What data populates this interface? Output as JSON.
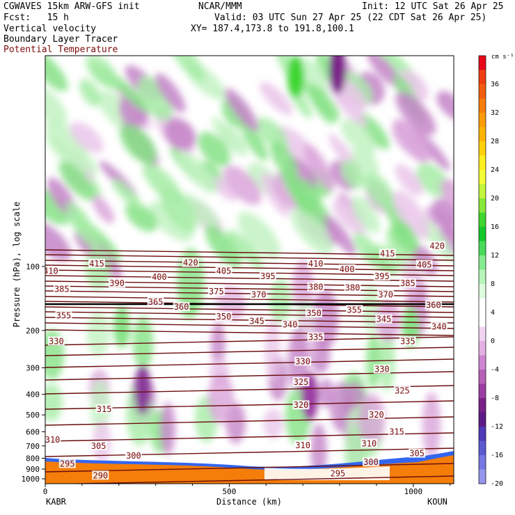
{
  "header": {
    "model": "CGWAVES 15km ARW-GFS init",
    "org": "NCAR/MMM",
    "init": "Init: 12 UTC Sat 26 Apr 25",
    "fcst": "Fcst:   15 h",
    "valid": "Valid: 03 UTC Sun 27 Apr 25 (22 CDT Sat 26 Apr 25)",
    "xy": "XY= 187.4,173.8 to 191.8,100.1",
    "fields": [
      "Vertical velocity",
      "Boundary Layer Tracer",
      "Potential Temperature"
    ]
  },
  "chart_data": {
    "type": "heatmap",
    "xlabel": "Distance (km)",
    "ylabel": "Pressure (hPa), log scale",
    "x_ticks": [
      0,
      500,
      1000
    ],
    "xlim": [
      0,
      1110
    ],
    "y_ticks": [
      100,
      200,
      300,
      400,
      500,
      600,
      700,
      800,
      900,
      1000
    ],
    "y_scale": "log",
    "endpoints": {
      "left": "KABR",
      "right": "KOUN"
    },
    "colorbar": {
      "unit": "cm s⁻¹",
      "labels": [
        36,
        32,
        28,
        24,
        20,
        16,
        12,
        8,
        4,
        0,
        -4,
        -8,
        -12,
        -16,
        -20
      ],
      "colors": [
        "#e8081a",
        "#f03e12",
        "#f25c0e",
        "#f57d0a",
        "#f99c07",
        "#fdb405",
        "#ffd10a",
        "#ffee20",
        "#f4fe38",
        "#c2f53d",
        "#86e838",
        "#3ed62f",
        "#14c829",
        "#48db59",
        "#85ea8f",
        "#b6f4ba",
        "#ddfbdd",
        "#ffffff",
        "#ffffff",
        "#f1d4f1",
        "#e2b0e2",
        "#cf84d0",
        "#b760b7",
        "#9b3ea3",
        "#7a2189",
        "#5c1a88",
        "#4f3ab7",
        "#5d5ad0",
        "#7876e2",
        "#9696ef"
      ]
    },
    "contour_labels": [
      {
        "value": "420",
        "x": 1065,
        "p": 80
      },
      {
        "value": "415",
        "x": 140,
        "p": 97
      },
      {
        "value": "415",
        "x": 930,
        "p": 87
      },
      {
        "value": "420",
        "x": 395,
        "p": 96
      },
      {
        "value": "410",
        "x": 15,
        "p": 105
      },
      {
        "value": "405",
        "x": 485,
        "p": 105
      },
      {
        "value": "410",
        "x": 735,
        "p": 97
      },
      {
        "value": "400",
        "x": 820,
        "p": 103
      },
      {
        "value": "405",
        "x": 1030,
        "p": 98
      },
      {
        "value": "400",
        "x": 310,
        "p": 112
      },
      {
        "value": "395",
        "x": 605,
        "p": 111
      },
      {
        "value": "395",
        "x": 915,
        "p": 111
      },
      {
        "value": "390",
        "x": 195,
        "p": 120
      },
      {
        "value": "385",
        "x": 45,
        "p": 128
      },
      {
        "value": "385",
        "x": 985,
        "p": 120
      },
      {
        "value": "380",
        "x": 735,
        "p": 125
      },
      {
        "value": "380",
        "x": 835,
        "p": 126
      },
      {
        "value": "375",
        "x": 465,
        "p": 131
      },
      {
        "value": "370",
        "x": 580,
        "p": 136
      },
      {
        "value": "370",
        "x": 925,
        "p": 136
      },
      {
        "value": "365",
        "x": 300,
        "p": 147
      },
      {
        "value": "360",
        "x": 370,
        "p": 155
      },
      {
        "value": "360",
        "x": 1055,
        "p": 152
      },
      {
        "value": "355",
        "x": 50,
        "p": 170
      },
      {
        "value": "355",
        "x": 840,
        "p": 160
      },
      {
        "value": "350",
        "x": 485,
        "p": 172
      },
      {
        "value": "350",
        "x": 730,
        "p": 166
      },
      {
        "value": "345",
        "x": 575,
        "p": 181
      },
      {
        "value": "345",
        "x": 920,
        "p": 177
      },
      {
        "value": "340",
        "x": 665,
        "p": 188
      },
      {
        "value": "340",
        "x": 1070,
        "p": 192
      },
      {
        "value": "335",
        "x": 735,
        "p": 215
      },
      {
        "value": "335",
        "x": 985,
        "p": 225
      },
      {
        "value": "330",
        "x": 30,
        "p": 225
      },
      {
        "value": "330",
        "x": 700,
        "p": 280
      },
      {
        "value": "330",
        "x": 915,
        "p": 305
      },
      {
        "value": "325",
        "x": 695,
        "p": 350
      },
      {
        "value": "325",
        "x": 970,
        "p": 385
      },
      {
        "value": "320",
        "x": 695,
        "p": 450
      },
      {
        "value": "320",
        "x": 900,
        "p": 500
      },
      {
        "value": "315",
        "x": 160,
        "p": 470
      },
      {
        "value": "315",
        "x": 955,
        "p": 600
      },
      {
        "value": "310",
        "x": 20,
        "p": 655
      },
      {
        "value": "310",
        "x": 700,
        "p": 695
      },
      {
        "value": "310",
        "x": 880,
        "p": 682
      },
      {
        "value": "305",
        "x": 145,
        "p": 700
      },
      {
        "value": "305",
        "x": 1010,
        "p": 760
      },
      {
        "value": "300",
        "x": 240,
        "p": 780
      },
      {
        "value": "300",
        "x": 885,
        "p": 835
      },
      {
        "value": "295",
        "x": 60,
        "p": 850
      },
      {
        "value": "295",
        "x": 795,
        "p": 945
      },
      {
        "value": "290",
        "x": 150,
        "p": 965
      }
    ]
  }
}
